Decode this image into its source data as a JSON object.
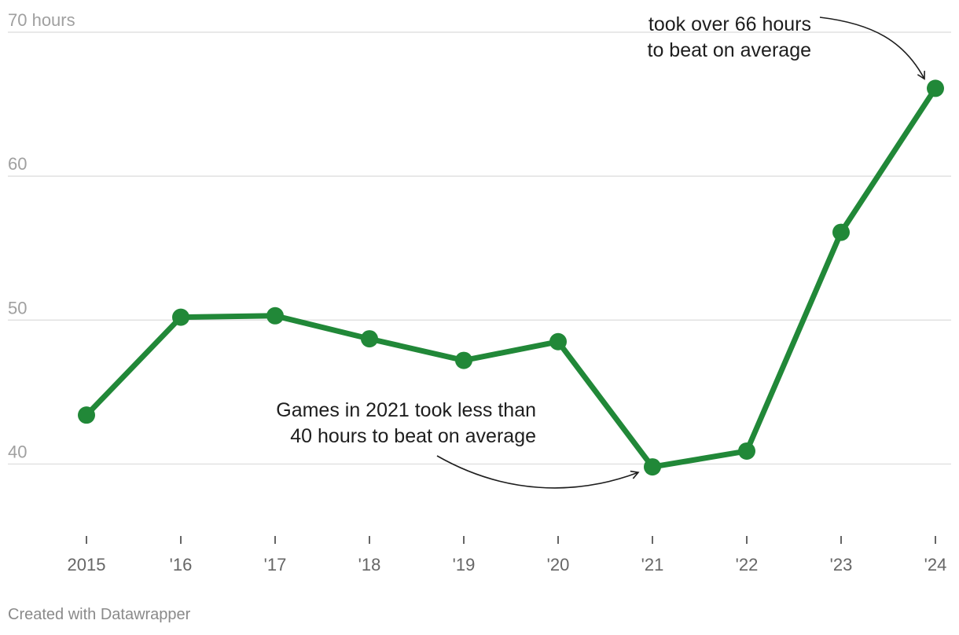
{
  "chart_data": {
    "type": "line",
    "x": [
      "2015",
      "'16",
      "'17",
      "'18",
      "'19",
      "'20",
      "'21",
      "'22",
      "'23",
      "'24"
    ],
    "series": [
      {
        "values": [
          43.4,
          50.2,
          50.3,
          48.7,
          47.2,
          48.5,
          39.8,
          40.9,
          56.1,
          66.1
        ]
      }
    ],
    "ylim": [
      35,
      70
    ],
    "yticks": [
      40,
      50,
      60,
      70
    ],
    "ytick_labels": [
      "40",
      "50",
      "60",
      "70 hours"
    ],
    "grid": true,
    "color": "#218838",
    "annotations": [
      {
        "x": "'24",
        "lines": [
          "took over 66 hours",
          "to beat on average"
        ]
      },
      {
        "x": "'21",
        "lines": [
          "Games in 2021 took less than",
          "40 hours to beat on average"
        ]
      }
    ]
  },
  "credit": "Created with Datawrapper"
}
